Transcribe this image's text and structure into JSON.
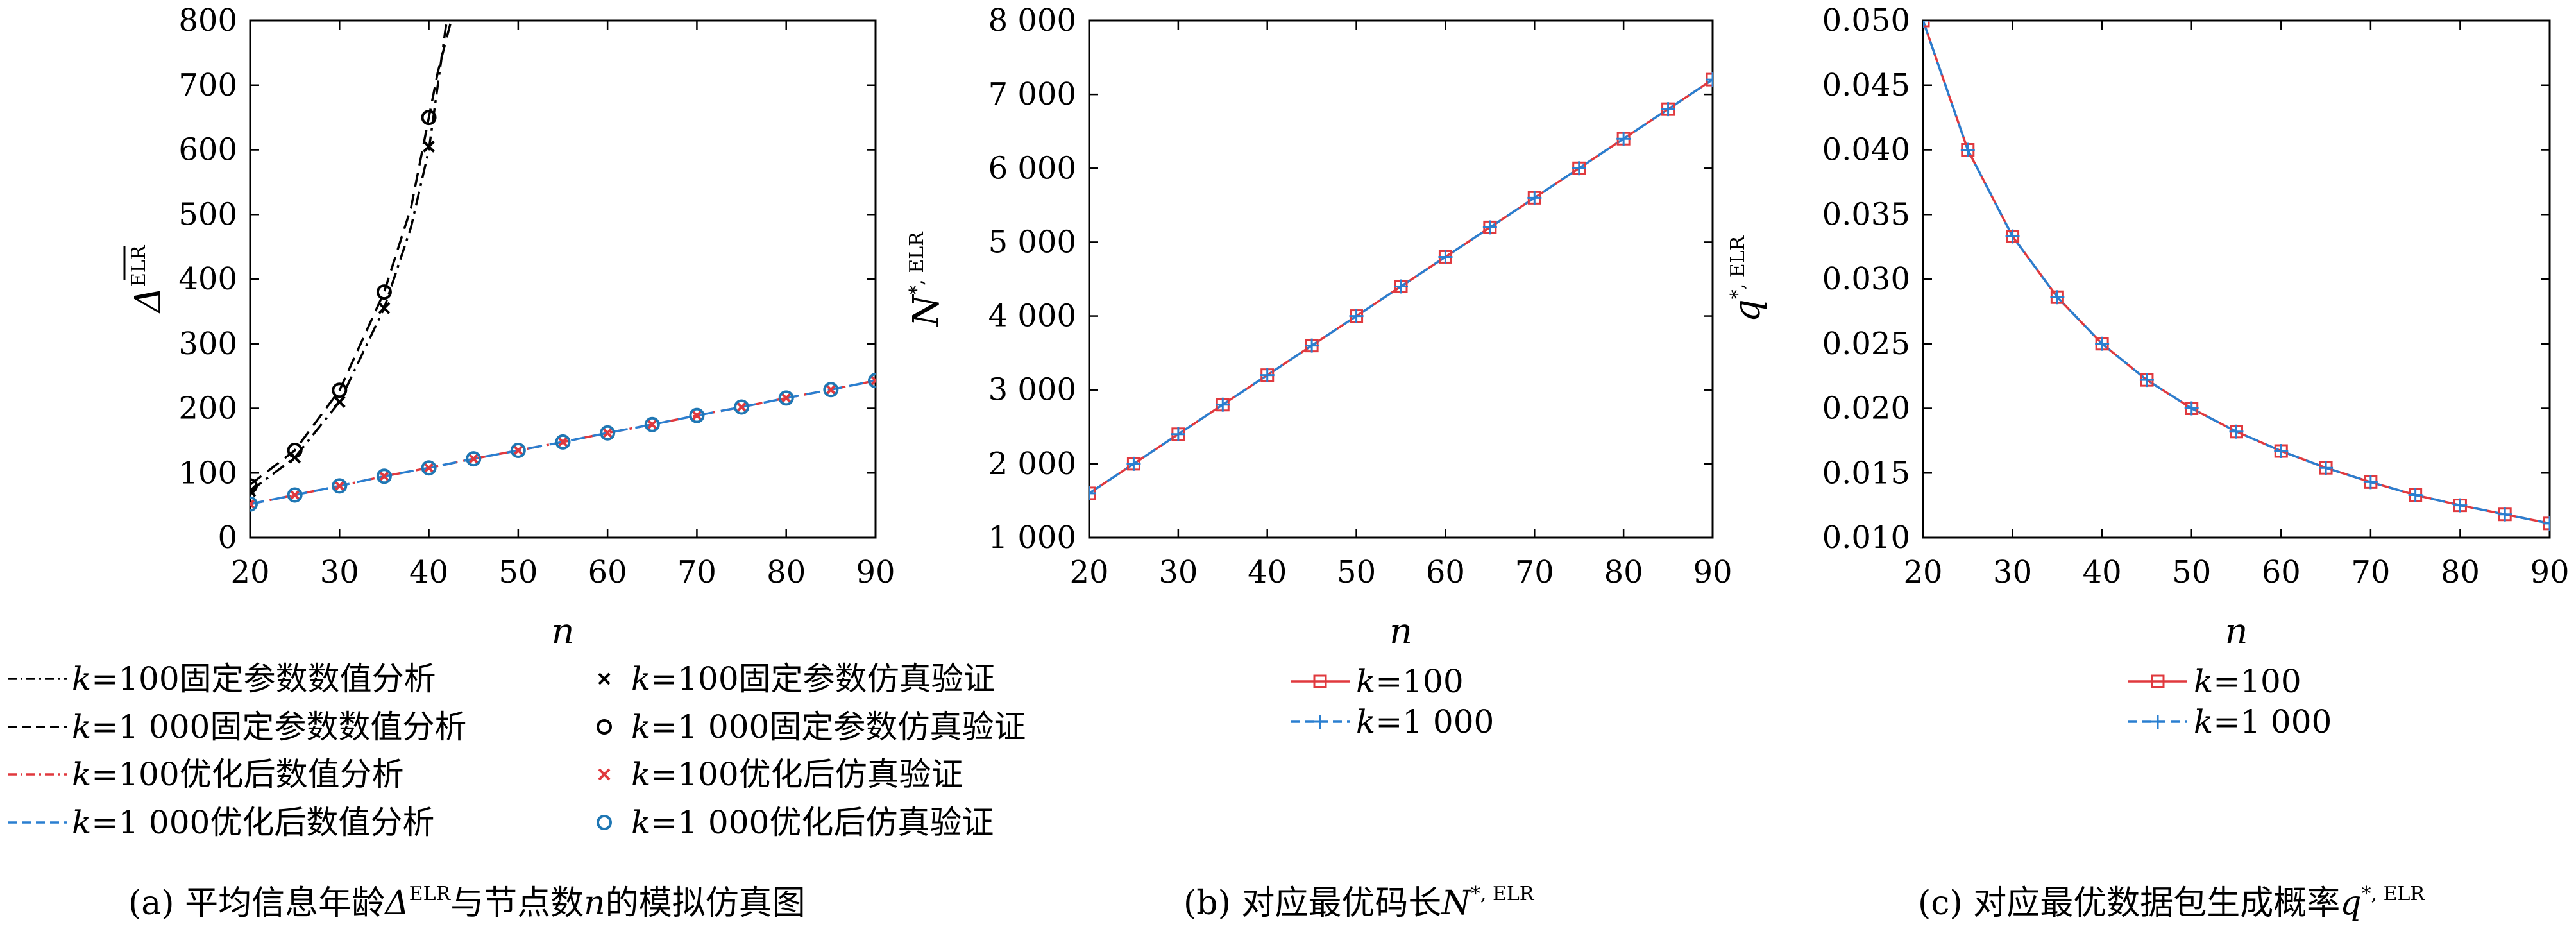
{
  "colors": {
    "black": "#000000",
    "red": "#e0393e",
    "blue": "#2a7fd0",
    "marker_blue": "#1f77b4"
  },
  "captions": {
    "a": {
      "prefix": "(a) 平均信息年龄",
      "delta": "Δ",
      "sup": "ELR",
      "mid": "与节点数",
      "n": "n",
      "suffix": "的模拟仿真图"
    },
    "b": {
      "prefix": "(b) 对应最优码长",
      "sym": "N",
      "sup": "*, ELR"
    },
    "c": {
      "prefix": "(c) 对应最优数据包生成概率",
      "sym": "q",
      "sup": "*, ELR"
    }
  },
  "legend_a": [
    {
      "k": "k",
      "eq": "=100",
      "text": "固定参数数值分析"
    },
    {
      "k": "k",
      "eq": "=1 000",
      "text": "固定参数数值分析"
    },
    {
      "k": "k",
      "eq": "=100",
      "text": "优化后数值分析"
    },
    {
      "k": "k",
      "eq": "=1 000",
      "text": "优化后数值分析"
    },
    {
      "k": "k",
      "eq": "=100",
      "text": "固定参数仿真验证"
    },
    {
      "k": "k",
      "eq": "=1 000",
      "text": "固定参数仿真验证"
    },
    {
      "k": "k",
      "eq": "=100",
      "text": "优化后仿真验证"
    },
    {
      "k": "k",
      "eq": "=1 000",
      "text": "优化后仿真验证"
    }
  ],
  "legend_bc": [
    {
      "k": "k",
      "eq": "=100"
    },
    {
      "k": "k",
      "eq": "=1 000"
    }
  ],
  "chart_data": [
    {
      "type": "line",
      "xlabel": "n",
      "ylabel_main": "Δ",
      "ylabel_sup": "ELR",
      "xlim": [
        20,
        90
      ],
      "ylim": [
        0,
        800
      ],
      "xticks": [
        "20",
        "30",
        "40",
        "50",
        "60",
        "70",
        "80",
        "90"
      ],
      "xtick_values": [
        20,
        30,
        40,
        50,
        60,
        70,
        80,
        90
      ],
      "yticks": [
        "0",
        "100",
        "200",
        "300",
        "400",
        "500",
        "600",
        "700",
        "800"
      ],
      "ytick_values": [
        0,
        100,
        200,
        300,
        400,
        500,
        600,
        700,
        800
      ],
      "series": [
        {
          "name": "k=100固定参数数值分析",
          "style": "dashdot",
          "color": "#000000",
          "x": [
            20,
            25,
            30,
            35,
            38,
            40,
            42
          ],
          "y": [
            72,
            124,
            210,
            355,
            480,
            600,
            800
          ]
        },
        {
          "name": "k=1 000固定参数数值分析",
          "style": "dashed",
          "color": "#000000",
          "x": [
            20,
            25,
            30,
            35,
            38,
            40,
            41,
            42.5
          ],
          "y": [
            82,
            135,
            228,
            380,
            510,
            650,
            720,
            800
          ]
        },
        {
          "name": "k=100优化后数值分析",
          "style": "dashdot",
          "color": "#e0393e",
          "x": [
            20,
            25,
            30,
            35,
            40,
            45,
            50,
            55,
            60,
            65,
            70,
            75,
            80,
            85,
            90
          ],
          "y": [
            52,
            66,
            80,
            95,
            108,
            122,
            135,
            148,
            162,
            175,
            189,
            202,
            216,
            229,
            243
          ]
        },
        {
          "name": "k=1 000优化后数值分析",
          "style": "dashed",
          "color": "#2a7fd0",
          "x": [
            20,
            25,
            30,
            35,
            40,
            45,
            50,
            55,
            60,
            65,
            70,
            75,
            80,
            85,
            90
          ],
          "y": [
            52,
            66,
            80,
            95,
            108,
            122,
            135,
            148,
            162,
            175,
            189,
            202,
            216,
            229,
            243
          ]
        },
        {
          "name": "k=100固定参数仿真验证",
          "marker": "x",
          "color": "#000000",
          "x": [
            20,
            25,
            30,
            35,
            40
          ],
          "y": [
            72,
            124,
            210,
            355,
            605
          ]
        },
        {
          "name": "k=1 000固定参数仿真验证",
          "marker": "o",
          "color": "#000000",
          "x": [
            20,
            25,
            30,
            35,
            40
          ],
          "y": [
            80,
            135,
            228,
            380,
            650
          ]
        },
        {
          "name": "k=100优化后仿真验证",
          "marker": "x",
          "color": "#e0393e",
          "x": [
            20,
            25,
            30,
            35,
            40,
            45,
            50,
            55,
            60,
            65,
            70,
            75,
            80,
            85,
            90
          ],
          "y": [
            52,
            66,
            80,
            95,
            108,
            122,
            135,
            148,
            162,
            175,
            189,
            202,
            216,
            229,
            243
          ]
        },
        {
          "name": "k=1 000优化后仿真验证",
          "marker": "o",
          "color": "#1f77b4",
          "x": [
            20,
            25,
            30,
            35,
            40,
            45,
            50,
            55,
            60,
            65,
            70,
            75,
            80,
            85,
            90
          ],
          "y": [
            52,
            66,
            80,
            95,
            108,
            122,
            135,
            148,
            162,
            175,
            189,
            202,
            216,
            229,
            243
          ]
        }
      ]
    },
    {
      "type": "line",
      "xlabel": "n",
      "ylabel_main": "N",
      "ylabel_sup": "*, ELR",
      "xlim": [
        20,
        90
      ],
      "ylim": [
        1000,
        8000
      ],
      "xticks": [
        "20",
        "30",
        "40",
        "50",
        "60",
        "70",
        "80",
        "90"
      ],
      "xtick_values": [
        20,
        30,
        40,
        50,
        60,
        70,
        80,
        90
      ],
      "yticks": [
        "1 000",
        "2 000",
        "3 000",
        "4 000",
        "5 000",
        "6 000",
        "7 000",
        "8 000"
      ],
      "ytick_values": [
        1000,
        2000,
        3000,
        4000,
        5000,
        6000,
        7000,
        8000
      ],
      "series": [
        {
          "name": "k=100",
          "style": "solid",
          "marker": "square",
          "color": "#e0393e",
          "x": [
            20,
            25,
            30,
            35,
            40,
            45,
            50,
            55,
            60,
            65,
            70,
            75,
            80,
            85,
            90
          ],
          "y": [
            1600,
            2000,
            2400,
            2800,
            3200,
            3600,
            4000,
            4400,
            4800,
            5200,
            5600,
            6000,
            6400,
            6800,
            7200
          ]
        },
        {
          "name": "k=1 000",
          "style": "dashed",
          "marker": "plus",
          "color": "#2a7fd0",
          "x": [
            20,
            25,
            30,
            35,
            40,
            45,
            50,
            55,
            60,
            65,
            70,
            75,
            80,
            85,
            90
          ],
          "y": [
            1600,
            2000,
            2400,
            2800,
            3200,
            3600,
            4000,
            4400,
            4800,
            5200,
            5600,
            6000,
            6400,
            6800,
            7200
          ]
        }
      ]
    },
    {
      "type": "line",
      "xlabel": "n",
      "ylabel_main": "q",
      "ylabel_sup": "*, ELR",
      "xlim": [
        20,
        90
      ],
      "ylim": [
        0.01,
        0.05
      ],
      "xticks": [
        "20",
        "30",
        "40",
        "50",
        "60",
        "70",
        "80",
        "90"
      ],
      "xtick_values": [
        20,
        30,
        40,
        50,
        60,
        70,
        80,
        90
      ],
      "yticks": [
        "0.010",
        "0.015",
        "0.020",
        "0.025",
        "0.030",
        "0.035",
        "0.040",
        "0.045",
        "0.050"
      ],
      "ytick_values": [
        0.01,
        0.015,
        0.02,
        0.025,
        0.03,
        0.035,
        0.04,
        0.045,
        0.05
      ],
      "series": [
        {
          "name": "k=100",
          "style": "solid",
          "marker": "square",
          "color": "#e0393e",
          "x": [
            20,
            25,
            30,
            35,
            40,
            45,
            50,
            55,
            60,
            65,
            70,
            75,
            80,
            85,
            90
          ],
          "y": [
            0.05,
            0.04,
            0.0333,
            0.0286,
            0.025,
            0.0222,
            0.02,
            0.0182,
            0.0167,
            0.0154,
            0.0143,
            0.0133,
            0.0125,
            0.0118,
            0.0111
          ]
        },
        {
          "name": "k=1 000",
          "style": "dashed",
          "marker": "plus",
          "color": "#2a7fd0",
          "x": [
            20,
            25,
            30,
            35,
            40,
            45,
            50,
            55,
            60,
            65,
            70,
            75,
            80,
            85,
            90
          ],
          "y": [
            0.05,
            0.04,
            0.0333,
            0.0286,
            0.025,
            0.0222,
            0.02,
            0.0182,
            0.0167,
            0.0154,
            0.0143,
            0.0133,
            0.0125,
            0.0118,
            0.0111
          ]
        }
      ]
    }
  ]
}
